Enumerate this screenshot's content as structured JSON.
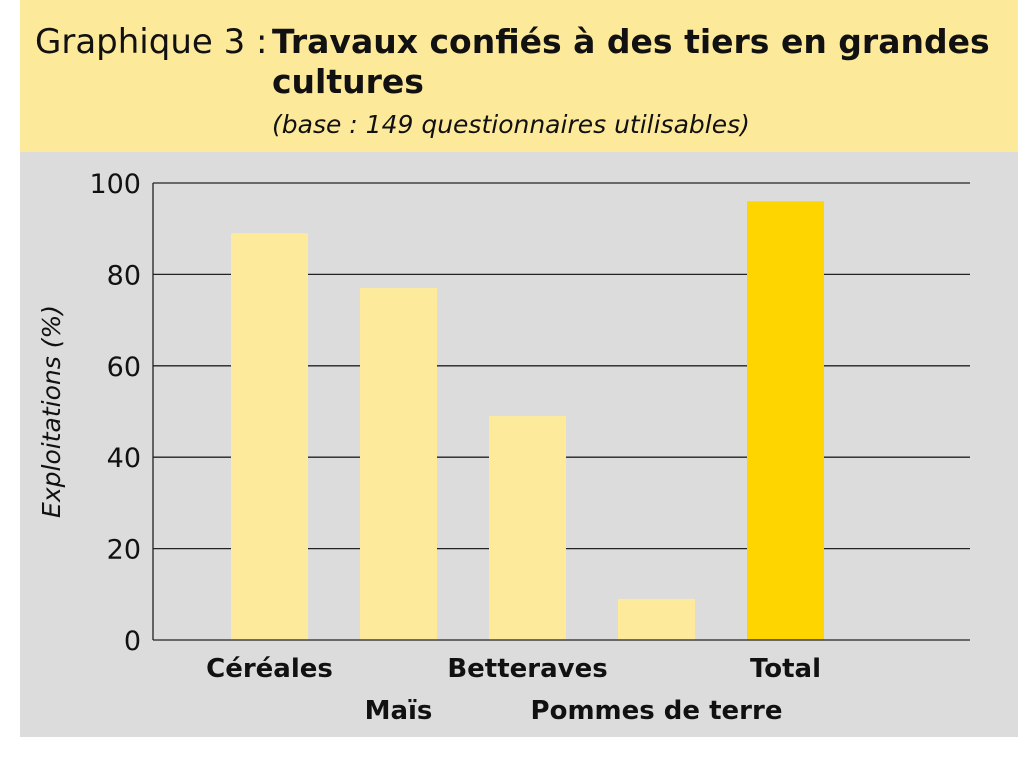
{
  "header": {
    "label": "Graphique 3 :",
    "title": "Travaux confiés à des tiers en grandes cultures",
    "subtitle": "(base : 149 questionnaires utilisables)"
  },
  "chart_data": {
    "type": "bar",
    "categories": [
      "Céréales",
      "Maïs",
      "Betteraves",
      "Pommes de terre",
      "Total"
    ],
    "values": [
      89,
      77,
      49,
      9,
      96
    ],
    "title": "Travaux confiés à des tiers en grandes cultures",
    "subtitle": "(base : 149 questionnaires utilisables)",
    "xlabel": "",
    "ylabel": "Exploitations (%)",
    "ylim": [
      0,
      100
    ],
    "yticks": [
      0,
      20,
      40,
      60,
      80,
      100
    ],
    "grid": true,
    "legend": "none",
    "colors": {
      "bar": "#fdeb9b",
      "highlight": "#ffd500",
      "highlight_category": "Total",
      "panel": "#dcdcdc",
      "header": "#fde99a"
    }
  }
}
